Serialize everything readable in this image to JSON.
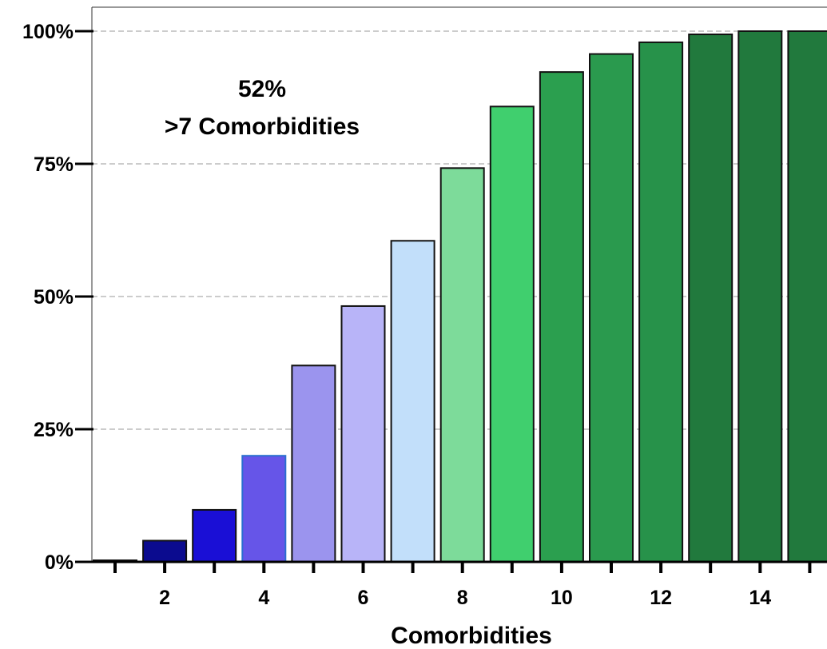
{
  "chart_data": {
    "type": "bar",
    "categories": [
      "1",
      "2",
      "3",
      "4",
      "5",
      "6",
      "7",
      "8",
      "9",
      "10",
      "11",
      "12",
      "13",
      "14",
      "15"
    ],
    "values": [
      0.3,
      4,
      9.8,
      20,
      37,
      48.2,
      60.5,
      74.2,
      85.8,
      92.3,
      95.7,
      97.9,
      99.4,
      100,
      100
    ],
    "bar_colors": [
      "#0a0a5a",
      "#0b0b8f",
      "#1a0fd6",
      "#6655e8",
      "#9b94ee",
      "#b8b4f8",
      "#c2dffa",
      "#7ddb9a",
      "#40cf6e",
      "#2b9f4f",
      "#2a9a4e",
      "#27924a",
      "#21793d",
      "#21793d",
      "#21793d"
    ],
    "ylim": [
      0,
      100
    ],
    "yticks": [
      0,
      25,
      50,
      75,
      100
    ],
    "ytick_labels": [
      "0%",
      "25%",
      "50%",
      "75%",
      "100%"
    ],
    "xtick_labels": [
      "2",
      "4",
      "6",
      "8",
      "10",
      "12",
      "14"
    ],
    "xtick_label_values": [
      2,
      4,
      6,
      8,
      10,
      12,
      14
    ],
    "title": "",
    "xlabel": "Comorbidities",
    "ylabel": "",
    "grid": true,
    "annotation": {
      "line1": "52%",
      "line2": ">7 Comorbidities"
    }
  }
}
